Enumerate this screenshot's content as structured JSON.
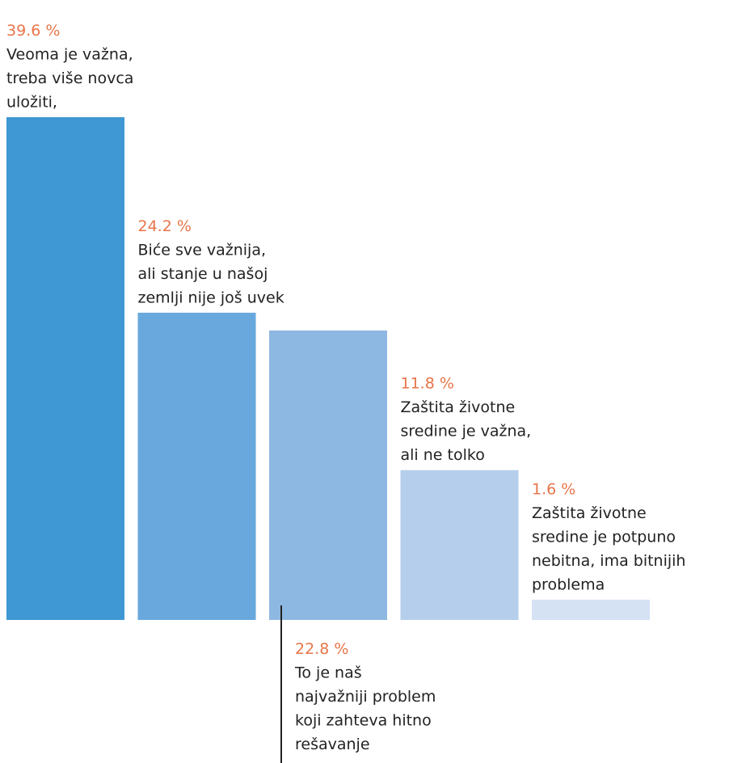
{
  "chart_data": {
    "type": "bar",
    "categories": [
      "Veoma je važna, treba više novca uložiti,",
      "Biće sve važnija, ali stanje u našoj zemlji nije još uvek",
      "To je naš najvažniji problem koji zahteva hitno rešavanje",
      "Zaštita životne sredine je važna, ali ne tolko",
      "Zaštita životne sredine je potpuno nebitna, ima bitnijih problema"
    ],
    "values": [
      39.6,
      24.2,
      22.8,
      11.8,
      1.6
    ],
    "value_labels": [
      "39.6 %",
      "24.2 %",
      "22.8 %",
      "11.8 %",
      "1.6 %"
    ],
    "label_lines": [
      [
        "Veoma je važna,",
        "treba više novca",
        "uložiti,"
      ],
      [
        "Biće sve važnija,",
        "ali stanje u našoj",
        "zemlji nije još uvek"
      ],
      [
        "To je naš",
        "najvažniji problem",
        "koji zahteva hitno",
        "rešavanje"
      ],
      [
        "Zaštita životne",
        "sredine je važna,",
        "ali ne tolko"
      ],
      [
        "Zaštita životne",
        "sredine je potpuno",
        "nebitna, ima bitnijih",
        "problema"
      ]
    ],
    "colors": [
      "#3f97d3",
      "#68a8dc",
      "#8db8e2",
      "#b5ceeb",
      "#d4e2f4"
    ],
    "label_color": "#e8754a",
    "text_color": "#222222",
    "ylim": [
      0,
      39.6
    ],
    "grid": false,
    "legend": "none"
  }
}
